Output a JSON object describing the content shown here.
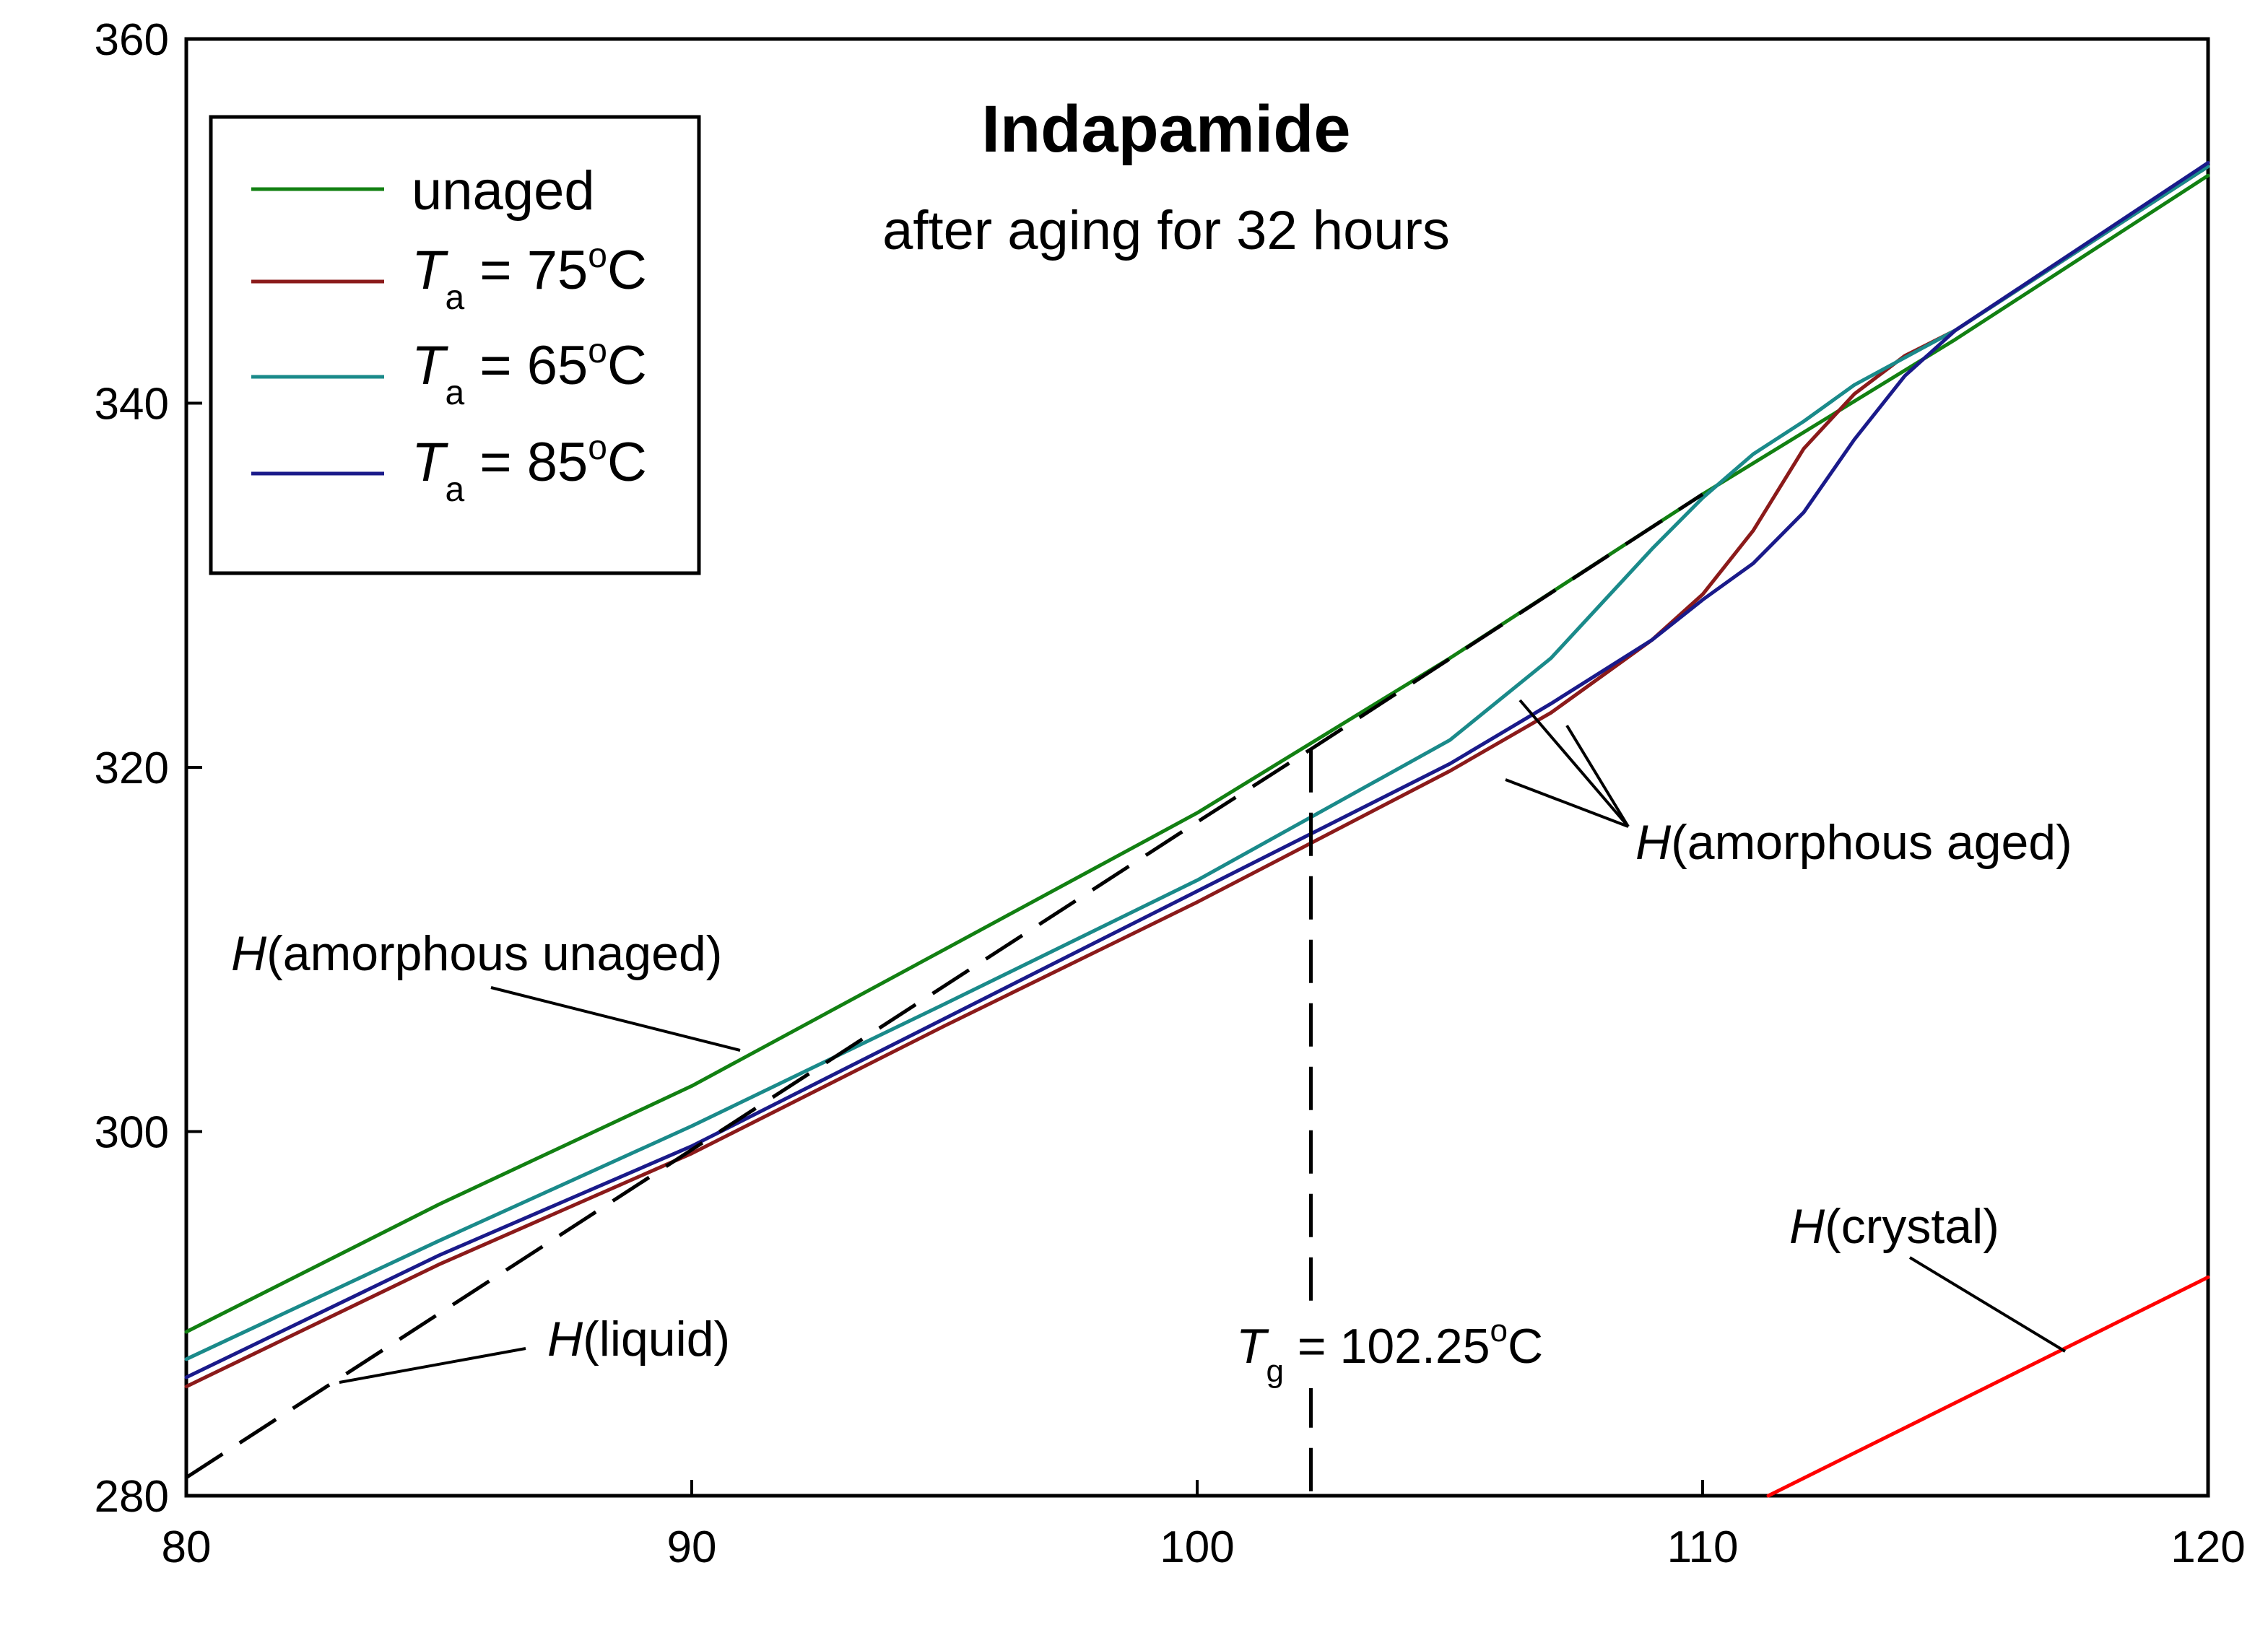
{
  "chart_data": {
    "type": "line",
    "title": "Indapamide",
    "subtitle": "after aging for 32 hours",
    "xlabel": "",
    "ylabel": "",
    "xlim": [
      80,
      120
    ],
    "ylim": [
      280,
      360
    ],
    "x_ticks": [
      80,
      90,
      100,
      110,
      120
    ],
    "y_ticks": [
      280,
      300,
      320,
      340,
      360
    ],
    "grid": false,
    "legend_position": "top-left",
    "legend": [
      {
        "label": "unaged",
        "color": "#128012"
      },
      {
        "label_prefix": "T",
        "label_sub": "a",
        "label_main": " = 75",
        "label_sup": "o",
        "label_unit": "C",
        "color": "#8b1a1a"
      },
      {
        "label_prefix": "T",
        "label_sub": "a",
        "label_main": " = 65",
        "label_sup": "o",
        "label_unit": "C",
        "color": "#1a8a8a"
      },
      {
        "label_prefix": "T",
        "label_sub": "a",
        "label_main": " = 85",
        "label_sup": "o",
        "label_unit": "C",
        "color": "#1a1a8a"
      }
    ],
    "series": [
      {
        "name": "unaged",
        "color": "#128012",
        "style": "solid",
        "points": [
          [
            80,
            289
          ],
          [
            85,
            296
          ],
          [
            90,
            302.5
          ],
          [
            95,
            310
          ],
          [
            100,
            317.5
          ],
          [
            105,
            326
          ],
          [
            110,
            335
          ],
          [
            115,
            343.5
          ],
          [
            120,
            352.5
          ]
        ]
      },
      {
        "name": "Ta = 75°C",
        "color": "#8b1a1a",
        "style": "solid",
        "points": [
          [
            80,
            286
          ],
          [
            85,
            292.7
          ],
          [
            90,
            298.8
          ],
          [
            95,
            305.8
          ],
          [
            100,
            312.6
          ],
          [
            105,
            319.8
          ],
          [
            107,
            323
          ],
          [
            109,
            327
          ],
          [
            110,
            329.5
          ],
          [
            111,
            333
          ],
          [
            112,
            337.5
          ],
          [
            113,
            340.5
          ],
          [
            114,
            342.6
          ],
          [
            115,
            344
          ],
          [
            120,
            353
          ]
        ]
      },
      {
        "name": "Ta = 65°C",
        "color": "#1a8a8a",
        "style": "solid",
        "points": [
          [
            80,
            287.5
          ],
          [
            85,
            294
          ],
          [
            90,
            300.3
          ],
          [
            95,
            307
          ],
          [
            100,
            313.8
          ],
          [
            105,
            321.5
          ],
          [
            107,
            326
          ],
          [
            108,
            329
          ],
          [
            109,
            332
          ],
          [
            110,
            334.8
          ],
          [
            111,
            337.2
          ],
          [
            112,
            339
          ],
          [
            113,
            341
          ],
          [
            114,
            342.5
          ],
          [
            115,
            344
          ],
          [
            120,
            353
          ]
        ]
      },
      {
        "name": "Ta = 85°C",
        "color": "#1a1a8a",
        "style": "solid",
        "points": [
          [
            80,
            286.5
          ],
          [
            85,
            293.2
          ],
          [
            90,
            299.2
          ],
          [
            95,
            306.2
          ],
          [
            100,
            313.2
          ],
          [
            105,
            320.2
          ],
          [
            107,
            323.5
          ],
          [
            109,
            327
          ],
          [
            110,
            329.2
          ],
          [
            111,
            331.2
          ],
          [
            112,
            334
          ],
          [
            113,
            338
          ],
          [
            114,
            341.5
          ],
          [
            115,
            344
          ],
          [
            120,
            353.2
          ]
        ]
      },
      {
        "name": "H(liquid)",
        "color": "#000000",
        "style": "dashed",
        "points": [
          [
            80,
            281
          ],
          [
            90,
            299
          ],
          [
            100,
            317
          ],
          [
            102.25,
            321
          ],
          [
            110,
            335
          ]
        ]
      },
      {
        "name": "H(crystal)",
        "color": "#ff0000",
        "style": "solid",
        "points": [
          [
            111.3,
            280
          ],
          [
            120,
            292
          ]
        ]
      }
    ],
    "tg_marker": {
      "x": 102.25,
      "y_top": 321
    },
    "annotations": {
      "amorphous_unaged": {
        "italic": "H",
        "text": "(amorphous unaged)"
      },
      "amorphous_aged": {
        "italic": "H",
        "text": "(amorphous aged)"
      },
      "liquid": {
        "italic": "H",
        "text": "(liquid)"
      },
      "crystal": {
        "italic": "H",
        "text": "(crystal)"
      },
      "tg": {
        "italic": "T",
        "sub": "g",
        "text": " = 102.25",
        "sup": "o",
        "unit": "C"
      }
    }
  }
}
